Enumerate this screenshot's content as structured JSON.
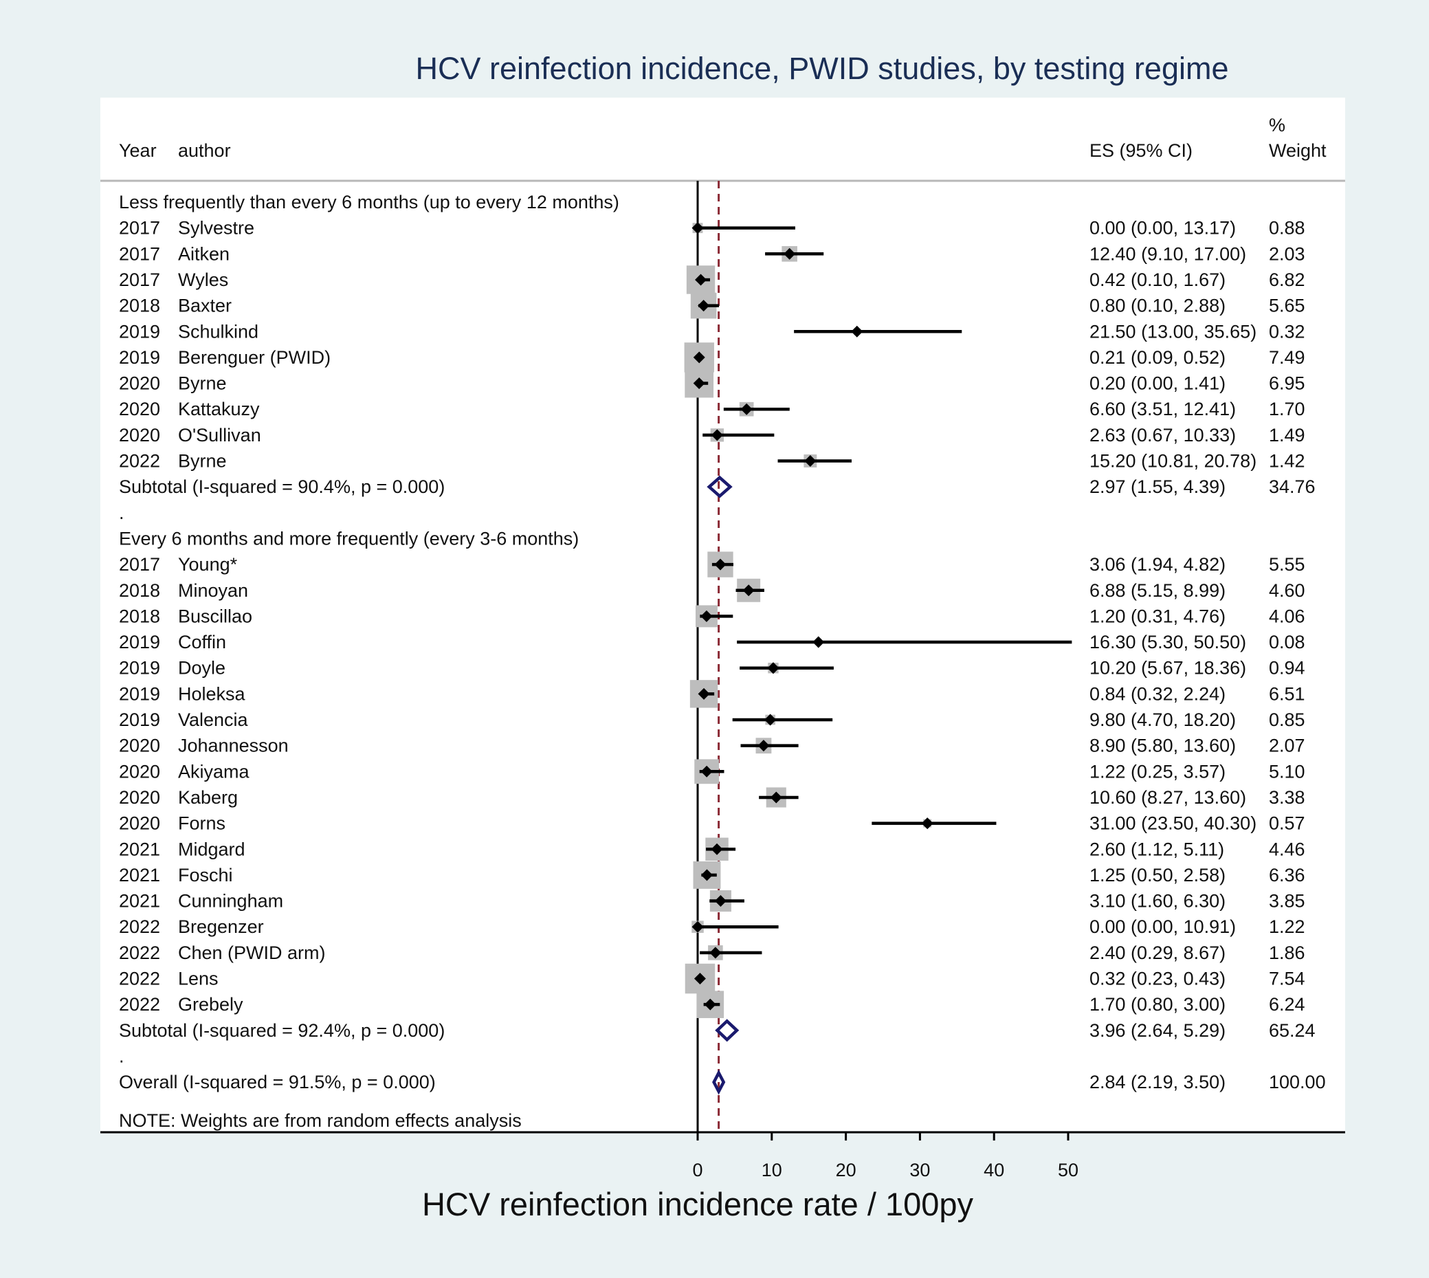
{
  "chart_data": {
    "type": "forest",
    "title": "HCV reinfection incidence, PWID studies, by testing regime",
    "xlabel": "HCV reinfection incidence rate / 100py",
    "xlim": [
      0,
      50
    ],
    "xticks": [
      0,
      10,
      20,
      30,
      40,
      50
    ],
    "reference_line": 2.84,
    "colors": {
      "study": "#000000",
      "weight_box": "#bdbdbd",
      "pooled": "#1a1a6e",
      "reference_line": "#8b2a35",
      "title": "#1a2e55",
      "background": "#eaf2f3"
    },
    "headers": {
      "year": "Year",
      "author": "author",
      "es": "ES (95% CI)",
      "weight_top": "%",
      "weight_bottom": "Weight"
    },
    "rows": [
      {
        "kind": "group",
        "label": "Less frequently than every 6 months (up to every 12 months)"
      },
      {
        "kind": "study",
        "year": "2017",
        "author": "Sylvestre",
        "es": 0.0,
        "lo": 0.0,
        "hi": 13.17,
        "es_text": "0.00 (0.00, 13.17)",
        "weight": 0.88,
        "weight_text": "0.88"
      },
      {
        "kind": "study",
        "year": "2017",
        "author": "Aitken",
        "es": 12.4,
        "lo": 9.1,
        "hi": 17.0,
        "es_text": "12.40 (9.10, 17.00)",
        "weight": 2.03,
        "weight_text": "2.03"
      },
      {
        "kind": "study",
        "year": "2017",
        "author": "Wyles",
        "es": 0.42,
        "lo": 0.1,
        "hi": 1.67,
        "es_text": "0.42 (0.10, 1.67)",
        "weight": 6.82,
        "weight_text": "6.82"
      },
      {
        "kind": "study",
        "year": "2018",
        "author": "Baxter",
        "es": 0.8,
        "lo": 0.1,
        "hi": 2.88,
        "es_text": "0.80 (0.10, 2.88)",
        "weight": 5.65,
        "weight_text": "5.65"
      },
      {
        "kind": "study",
        "year": "2019",
        "author": "Schulkind",
        "es": 21.5,
        "lo": 13.0,
        "hi": 35.65,
        "es_text": "21.50 (13.00, 35.65)",
        "weight": 0.32,
        "weight_text": "0.32"
      },
      {
        "kind": "study",
        "year": "2019",
        "author": "Berenguer (PWID)",
        "es": 0.21,
        "lo": 0.09,
        "hi": 0.52,
        "es_text": "0.21 (0.09, 0.52)",
        "weight": 7.49,
        "weight_text": "7.49"
      },
      {
        "kind": "study",
        "year": "2020",
        "author": "Byrne",
        "es": 0.2,
        "lo": 0.0,
        "hi": 1.41,
        "es_text": "0.20 (0.00, 1.41)",
        "weight": 6.95,
        "weight_text": "6.95"
      },
      {
        "kind": "study",
        "year": "2020",
        "author": "Kattakuzy",
        "es": 6.6,
        "lo": 3.51,
        "hi": 12.41,
        "es_text": "6.60 (3.51, 12.41)",
        "weight": 1.7,
        "weight_text": "1.70"
      },
      {
        "kind": "study",
        "year": "2020",
        "author": "O'Sullivan",
        "es": 2.63,
        "lo": 0.67,
        "hi": 10.33,
        "es_text": "2.63 (0.67, 10.33)",
        "weight": 1.49,
        "weight_text": "1.49"
      },
      {
        "kind": "study",
        "year": "2022",
        "author": "Byrne",
        "es": 15.2,
        "lo": 10.81,
        "hi": 20.78,
        "es_text": "15.20 (10.81, 20.78)",
        "weight": 1.42,
        "weight_text": "1.42"
      },
      {
        "kind": "subtotal",
        "label": "Subtotal  (I-squared = 90.4%, p = 0.000)",
        "es": 2.97,
        "lo": 1.55,
        "hi": 4.39,
        "es_text": "2.97 (1.55, 4.39)",
        "weight_text": "34.76"
      },
      {
        "kind": "dot",
        "label": "."
      },
      {
        "kind": "group",
        "label": "Every 6 months and more frequently (every 3-6 months)"
      },
      {
        "kind": "study",
        "year": "2017",
        "author": "Young*",
        "es": 3.06,
        "lo": 1.94,
        "hi": 4.82,
        "es_text": "3.06 (1.94, 4.82)",
        "weight": 5.55,
        "weight_text": "5.55"
      },
      {
        "kind": "study",
        "year": "2018",
        "author": "Minoyan",
        "es": 6.88,
        "lo": 5.15,
        "hi": 8.99,
        "es_text": "6.88 (5.15, 8.99)",
        "weight": 4.6,
        "weight_text": "4.60"
      },
      {
        "kind": "study",
        "year": "2018",
        "author": "Buscillao",
        "es": 1.2,
        "lo": 0.31,
        "hi": 4.76,
        "es_text": "1.20 (0.31, 4.76)",
        "weight": 4.06,
        "weight_text": "4.06"
      },
      {
        "kind": "study",
        "year": "2019",
        "author": "Coffin",
        "es": 16.3,
        "lo": 5.3,
        "hi": 50.5,
        "es_text": "16.30 (5.30, 50.50)",
        "weight": 0.08,
        "weight_text": "0.08"
      },
      {
        "kind": "study",
        "year": "2019",
        "author": "Doyle",
        "es": 10.2,
        "lo": 5.67,
        "hi": 18.36,
        "es_text": "10.20 (5.67, 18.36)",
        "weight": 0.94,
        "weight_text": "0.94"
      },
      {
        "kind": "study",
        "year": "2019",
        "author": "Holeksa",
        "es": 0.84,
        "lo": 0.32,
        "hi": 2.24,
        "es_text": "0.84 (0.32, 2.24)",
        "weight": 6.51,
        "weight_text": "6.51"
      },
      {
        "kind": "study",
        "year": "2019",
        "author": "Valencia",
        "es": 9.8,
        "lo": 4.7,
        "hi": 18.2,
        "es_text": "9.80 (4.70, 18.20)",
        "weight": 0.85,
        "weight_text": "0.85"
      },
      {
        "kind": "study",
        "year": "2020",
        "author": "Johannesson",
        "es": 8.9,
        "lo": 5.8,
        "hi": 13.6,
        "es_text": "8.90 (5.80, 13.60)",
        "weight": 2.07,
        "weight_text": "2.07"
      },
      {
        "kind": "study",
        "year": "2020",
        "author": "Akiyama",
        "es": 1.22,
        "lo": 0.25,
        "hi": 3.57,
        "es_text": "1.22 (0.25, 3.57)",
        "weight": 5.1,
        "weight_text": "5.10"
      },
      {
        "kind": "study",
        "year": "2020",
        "author": "Kaberg",
        "es": 10.6,
        "lo": 8.27,
        "hi": 13.6,
        "es_text": "10.60 (8.27, 13.60)",
        "weight": 3.38,
        "weight_text": "3.38"
      },
      {
        "kind": "study",
        "year": "2020",
        "author": "Forns",
        "es": 31.0,
        "lo": 23.5,
        "hi": 40.3,
        "es_text": "31.00 (23.50, 40.30)",
        "weight": 0.57,
        "weight_text": "0.57"
      },
      {
        "kind": "study",
        "year": "2021",
        "author": "Midgard",
        "es": 2.6,
        "lo": 1.12,
        "hi": 5.11,
        "es_text": "2.60 (1.12, 5.11)",
        "weight": 4.46,
        "weight_text": "4.46"
      },
      {
        "kind": "study",
        "year": "2021",
        "author": "Foschi",
        "es": 1.25,
        "lo": 0.5,
        "hi": 2.58,
        "es_text": "1.25 (0.50, 2.58)",
        "weight": 6.36,
        "weight_text": "6.36"
      },
      {
        "kind": "study",
        "year": "2021",
        "author": "Cunningham",
        "es": 3.1,
        "lo": 1.6,
        "hi": 6.3,
        "es_text": "3.10 (1.60, 6.30)",
        "weight": 3.85,
        "weight_text": "3.85"
      },
      {
        "kind": "study",
        "year": "2022",
        "author": "Bregenzer",
        "es": 0.0,
        "lo": 0.0,
        "hi": 10.91,
        "es_text": "0.00 (0.00, 10.91)",
        "weight": 1.22,
        "weight_text": "1.22"
      },
      {
        "kind": "study",
        "year": "2022",
        "author": "Chen (PWID arm)",
        "es": 2.4,
        "lo": 0.29,
        "hi": 8.67,
        "es_text": "2.40 (0.29, 8.67)",
        "weight": 1.86,
        "weight_text": "1.86"
      },
      {
        "kind": "study",
        "year": "2022",
        "author": "Lens",
        "es": 0.32,
        "lo": 0.23,
        "hi": 0.43,
        "es_text": "0.32 (0.23, 0.43)",
        "weight": 7.54,
        "weight_text": "7.54"
      },
      {
        "kind": "study",
        "year": "2022",
        "author": "Grebely",
        "es": 1.7,
        "lo": 0.8,
        "hi": 3.0,
        "es_text": "1.70 (0.80, 3.00)",
        "weight": 6.24,
        "weight_text": "6.24"
      },
      {
        "kind": "subtotal",
        "label": "Subtotal  (I-squared = 92.4%, p = 0.000)",
        "es": 3.96,
        "lo": 2.64,
        "hi": 5.29,
        "es_text": "3.96 (2.64, 5.29)",
        "weight_text": "65.24"
      },
      {
        "kind": "dot",
        "label": "."
      },
      {
        "kind": "overall",
        "label": "Overall  (I-squared = 91.5%, p = 0.000)",
        "es": 2.84,
        "lo": 2.19,
        "hi": 3.5,
        "es_text": "2.84 (2.19, 3.50)",
        "weight_text": "100.00"
      }
    ],
    "note": "NOTE: Weights are from random effects analysis"
  }
}
